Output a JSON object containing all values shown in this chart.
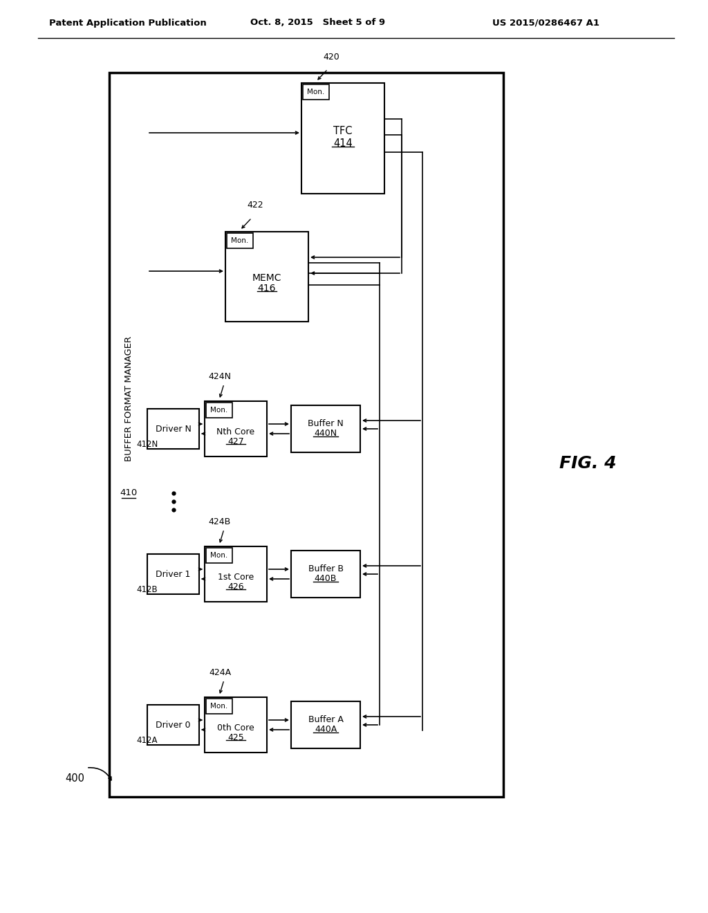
{
  "header_left": "Patent Application Publication",
  "header_mid": "Oct. 8, 2015   Sheet 5 of 9",
  "header_right": "US 2015/0286467 A1",
  "fig_label": "FIG. 4",
  "background": "#ffffff"
}
